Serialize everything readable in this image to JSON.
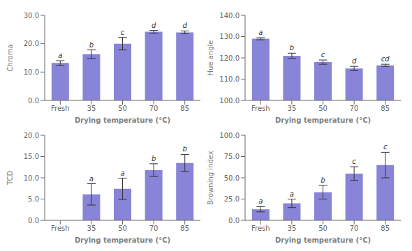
{
  "chart_data": [
    {
      "type": "bar",
      "categories": [
        "Fresh",
        "35",
        "50",
        "70",
        "85"
      ],
      "values": [
        13.2,
        16.3,
        20.0,
        24.2,
        24.0
      ],
      "errors": [
        0.8,
        1.5,
        2.2,
        0.5,
        0.5
      ],
      "annotations": [
        "a",
        "b",
        "c",
        "d",
        "d"
      ],
      "ylabel": "Chroma",
      "xlabel": "Drying temperature (°C)",
      "color": "#8884d8",
      "ylim": [
        0.0,
        30.0
      ],
      "yticks": [
        {
          "value": 0,
          "label": "0.0"
        },
        {
          "value": 10,
          "label": "10.0"
        },
        {
          "value": 20,
          "label": "20.0"
        },
        {
          "value": 30,
          "label": "30.0"
        }
      ]
    },
    {
      "type": "bar",
      "categories": [
        "Fresh",
        "35",
        "50",
        "70",
        "85"
      ],
      "values": [
        129.0,
        121.0,
        118.0,
        115.0,
        116.5
      ],
      "errors": [
        0.5,
        1.2,
        1.0,
        1.0,
        0.5
      ],
      "annotations": [
        "a",
        "b",
        "c",
        "d",
        "cd"
      ],
      "ylabel": "Hue angle",
      "xlabel": "Drying temperature (°C)",
      "color": "#8884d8",
      "ylim": [
        100.0,
        140.0
      ],
      "yticks": [
        {
          "value": 100,
          "label": "100.0"
        },
        {
          "value": 110,
          "label": "110.0"
        },
        {
          "value": 120,
          "label": "120.0"
        },
        {
          "value": 130,
          "label": "130.0"
        },
        {
          "value": 140,
          "label": "140.0"
        }
      ]
    },
    {
      "type": "bar",
      "categories": [
        "Fresh",
        "35",
        "50",
        "70",
        "85"
      ],
      "values": [
        0.0,
        6.1,
        7.4,
        11.8,
        13.5
      ],
      "errors": [
        0.0,
        2.5,
        2.5,
        1.5,
        2.0
      ],
      "annotations": [
        null,
        "a",
        "a",
        "b",
        "b"
      ],
      "ylabel": "TCD",
      "xlabel": "Drying temperature (°C)",
      "color": "#8884d8",
      "ylim": [
        0.0,
        20.0
      ],
      "yticks": [
        {
          "value": 0,
          "label": "0.0"
        },
        {
          "value": 5,
          "label": "5.0"
        },
        {
          "value": 10,
          "label": "10.0"
        },
        {
          "value": 15,
          "label": "15.0"
        },
        {
          "value": 20,
          "label": "20.0"
        }
      ]
    },
    {
      "type": "bar",
      "categories": [
        "Fresh",
        "35",
        "50",
        "70",
        "85"
      ],
      "values": [
        13.0,
        20.0,
        33.0,
        55.0,
        65.0
      ],
      "errors": [
        3.0,
        5.0,
        8.0,
        8.0,
        15.0
      ],
      "annotations": [
        "a",
        "a",
        "b",
        "c",
        "c"
      ],
      "ylabel": "Browning index",
      "xlabel": "Drying temperature (°C)",
      "color": "#8884d8",
      "ylim": [
        0.0,
        100.0
      ],
      "yticks": [
        {
          "value": 0,
          "label": "0.0"
        },
        {
          "value": 25,
          "label": "25.0"
        },
        {
          "value": 50,
          "label": "50.0"
        },
        {
          "value": 75,
          "label": "75.0"
        },
        {
          "value": 100,
          "label": "100.0"
        }
      ]
    }
  ]
}
